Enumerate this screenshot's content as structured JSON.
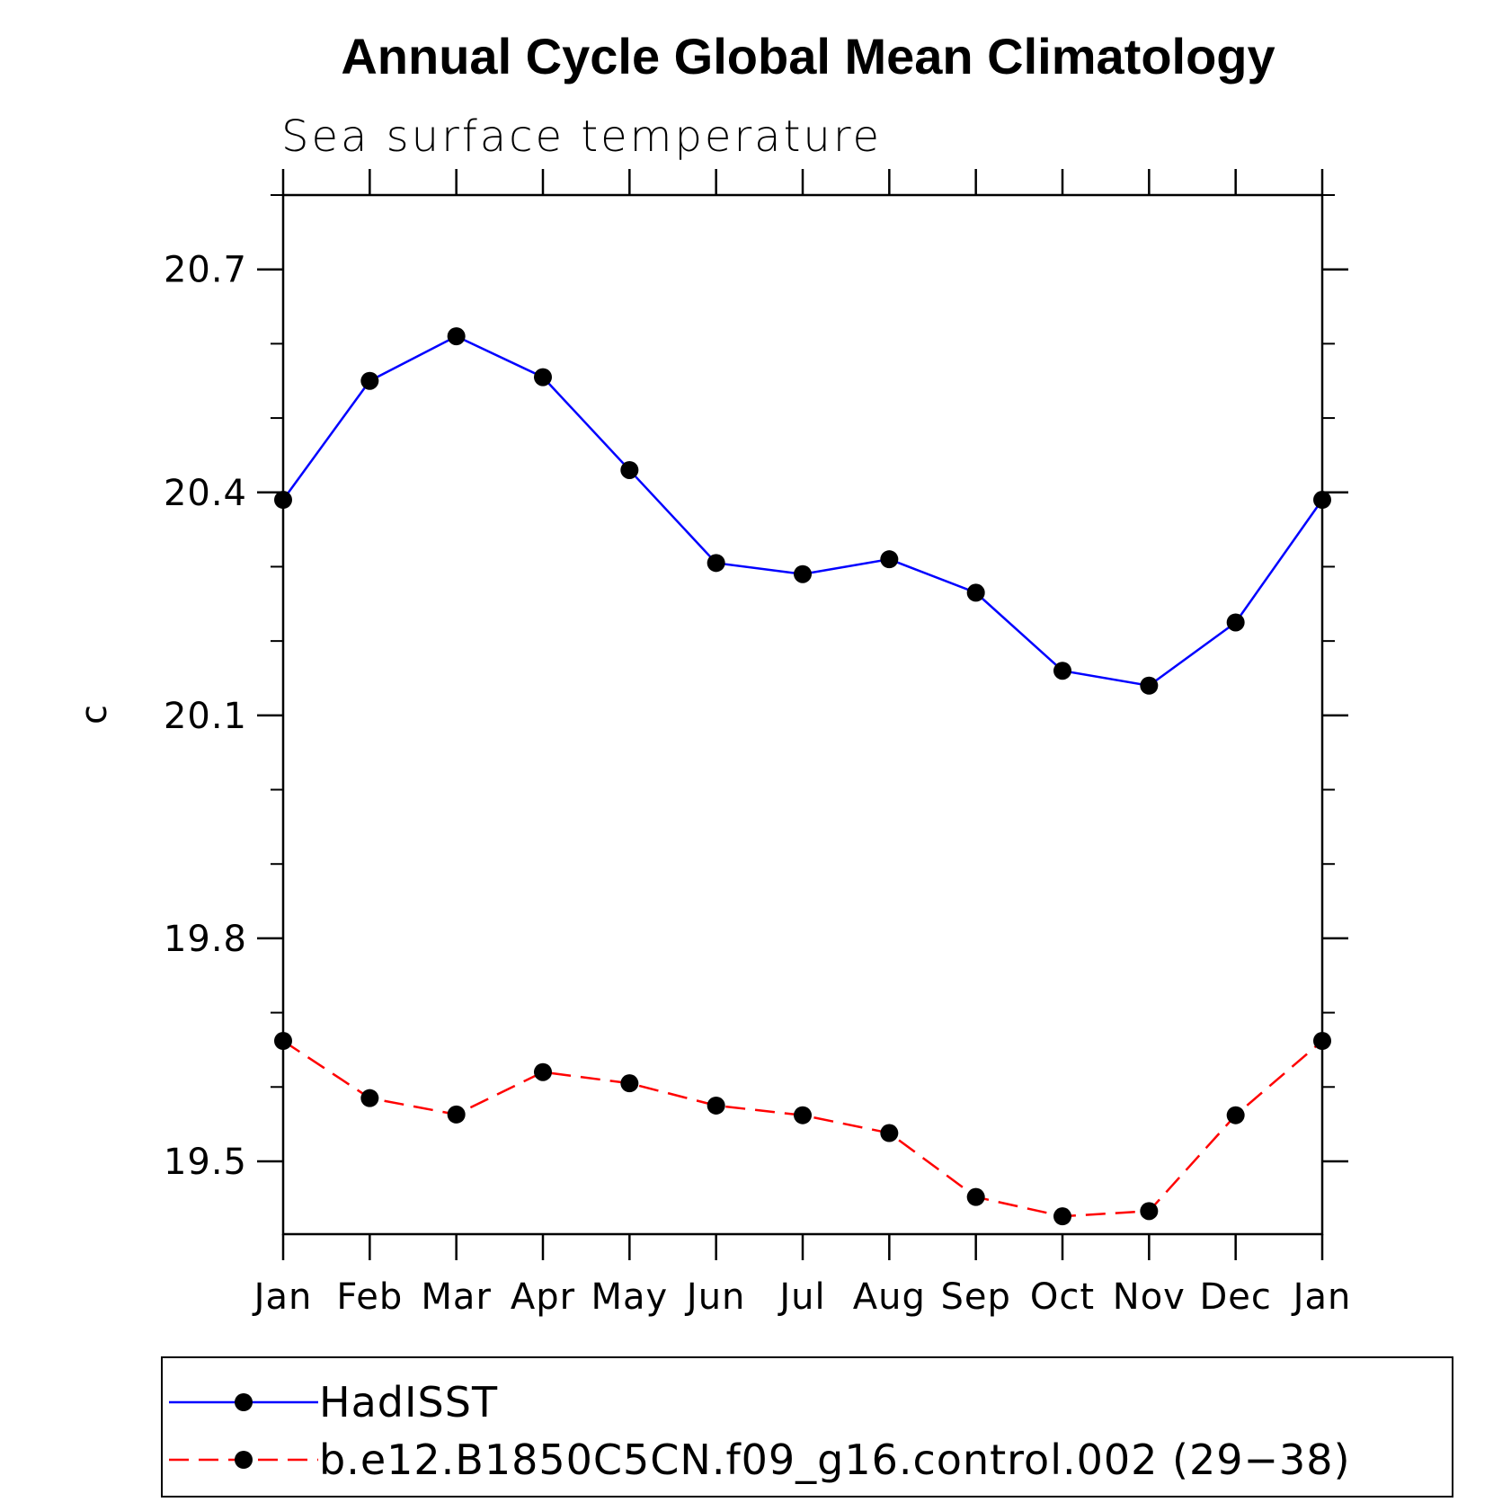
{
  "chart_data": {
    "type": "line",
    "title": "Annual Cycle Global Mean Climatology",
    "subtitle": "Sea surface temperature",
    "xlabel": "",
    "ylabel": "c",
    "categories": [
      "Jan",
      "Feb",
      "Mar",
      "Apr",
      "May",
      "Jun",
      "Jul",
      "Aug",
      "Sep",
      "Oct",
      "Nov",
      "Dec",
      "Jan"
    ],
    "ylim": [
      19.402,
      20.8
    ],
    "yticks": [
      19.5,
      19.8,
      20.1,
      20.4,
      20.7
    ],
    "ytick_labels": [
      "19.5",
      "19.8",
      "20.1",
      "20.4",
      "20.7"
    ],
    "yminor_step": 0.1,
    "grid": false,
    "legend_position": "bottom",
    "series": [
      {
        "name": "HadISST",
        "color": "#0000ff",
        "dash": "solid",
        "marker": "filled-circle",
        "values": [
          20.39,
          20.55,
          20.61,
          20.555,
          20.43,
          20.305,
          20.29,
          20.31,
          20.265,
          20.16,
          20.14,
          20.225,
          20.39
        ]
      },
      {
        "name": "b.e12.B1850C5CN.f09_g16.control.002 (29−38)",
        "color": "#ff0000",
        "dash": "dashed",
        "marker": "filled-circle",
        "values": [
          19.662,
          19.585,
          19.563,
          19.62,
          19.605,
          19.575,
          19.562,
          19.538,
          19.452,
          19.426,
          19.433,
          19.562,
          19.662
        ]
      }
    ]
  }
}
